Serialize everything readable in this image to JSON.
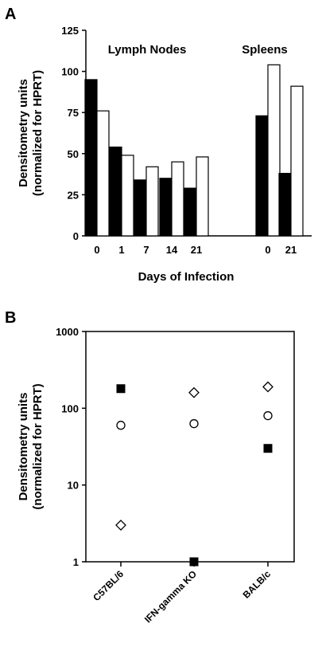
{
  "chart_data": [
    {
      "panel": "A",
      "type": "bar",
      "ylabel_line1": "Densitometry units",
      "ylabel_line2": "(normalized for HPRT)",
      "xlabel": "Days of Infection",
      "ylim": [
        0,
        125
      ],
      "yticks": [
        0,
        25,
        50,
        75,
        100,
        125
      ],
      "annotations": [
        "Lymph Nodes",
        "Spleens"
      ],
      "groups": [
        {
          "tissue": "Lymph Nodes",
          "category": "0",
          "values": [
            95,
            76
          ]
        },
        {
          "tissue": "Lymph Nodes",
          "category": "1",
          "values": [
            54,
            49
          ]
        },
        {
          "tissue": "Lymph Nodes",
          "category": "7",
          "values": [
            34,
            42
          ]
        },
        {
          "tissue": "Lymph Nodes",
          "category": "14",
          "values": [
            35,
            45
          ]
        },
        {
          "tissue": "Lymph Nodes",
          "category": "21",
          "values": [
            29,
            48
          ]
        },
        {
          "tissue": "Spleens",
          "category": "0",
          "values": [
            73,
            104
          ]
        },
        {
          "tissue": "Spleens",
          "category": "21",
          "values": [
            38,
            91
          ]
        }
      ],
      "series_colors": [
        "#000000",
        "#ffffff"
      ],
      "grid": false
    },
    {
      "panel": "B",
      "type": "scatter",
      "ylabel_line1": "Densitometry units",
      "ylabel_line2": "(normalized for HPRT)",
      "yscale": "log",
      "ylim": [
        1,
        1000
      ],
      "yticks": [
        1,
        10,
        100,
        1000
      ],
      "categories": [
        "C57BL/6",
        "IFN-gamma KO",
        "BALB/c"
      ],
      "series": [
        {
          "marker": "filled-square",
          "values": [
            180,
            1,
            30
          ]
        },
        {
          "marker": "open-circle",
          "values": [
            60,
            63,
            80
          ]
        },
        {
          "marker": "open-diamond",
          "values": [
            3,
            160,
            190
          ]
        }
      ],
      "grid": false
    }
  ]
}
